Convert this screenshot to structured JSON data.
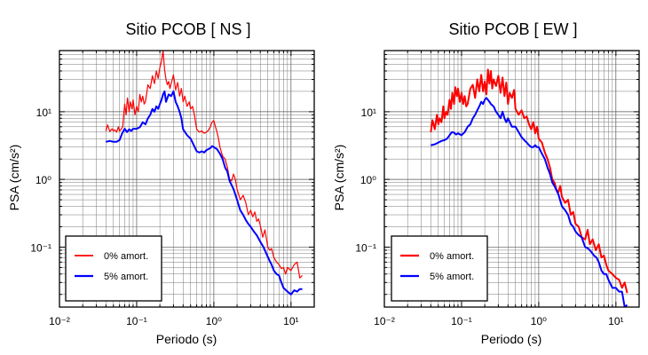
{
  "figure": {
    "background": "#ffffff"
  },
  "chart_data": [
    {
      "type": "line",
      "title": "Sitio PCOB [ NS ]",
      "xlabel": "Periodo (s)",
      "ylabel": "PSA (cm/s²)",
      "xscale": "log",
      "yscale": "log",
      "xlim": [
        0.01,
        20
      ],
      "ylim": [
        0.013,
        80
      ],
      "xticks": [
        0.01,
        0.1,
        1,
        10
      ],
      "xtick_labels": [
        "10⁻²",
        "10⁻¹",
        "10⁰",
        "10¹"
      ],
      "yticks": [
        0.1,
        1,
        10
      ],
      "ytick_labels": [
        "10⁻¹",
        "10⁰",
        "10¹"
      ],
      "grid": true,
      "legend": "lower-left",
      "series": [
        {
          "name": "0% amort.",
          "color": "#ff0000",
          "width": 1.2,
          "x": [
            0.04,
            0.042,
            0.045,
            0.048,
            0.05,
            0.052,
            0.055,
            0.058,
            0.06,
            0.063,
            0.066,
            0.07,
            0.073,
            0.076,
            0.08,
            0.083,
            0.087,
            0.09,
            0.095,
            0.1,
            0.105,
            0.11,
            0.115,
            0.12,
            0.125,
            0.13,
            0.14,
            0.15,
            0.16,
            0.17,
            0.18,
            0.19,
            0.2,
            0.21,
            0.22,
            0.23,
            0.24,
            0.25,
            0.26,
            0.27,
            0.28,
            0.3,
            0.32,
            0.34,
            0.36,
            0.38,
            0.4,
            0.42,
            0.45,
            0.48,
            0.5,
            0.53,
            0.56,
            0.6,
            0.65,
            0.7,
            0.75,
            0.8,
            0.85,
            0.9,
            0.95,
            1.0,
            1.05,
            1.1,
            1.15,
            1.2,
            1.3,
            1.4,
            1.5,
            1.6,
            1.7,
            1.8,
            1.9,
            2.0,
            2.2,
            2.4,
            2.6,
            2.8,
            3.0,
            3.2,
            3.4,
            3.6,
            3.8,
            4.0,
            4.3,
            4.6,
            5.0,
            5.3,
            5.6,
            6.0,
            6.5,
            7.0,
            7.5,
            8.0,
            8.5,
            9.0,
            10.0,
            11.0,
            12.0,
            13.0,
            14.0
          ],
          "y": [
            5.2,
            6.4,
            5.1,
            5.6,
            5.2,
            5.4,
            5.0,
            6.0,
            5.2,
            5.5,
            6.0,
            13.0,
            9.0,
            16.0,
            10.0,
            14.0,
            11.0,
            15.0,
            9.0,
            12.0,
            10.0,
            18.0,
            14.0,
            17.0,
            13.0,
            14.0,
            25.0,
            22.0,
            34.0,
            26.0,
            40.0,
            31.0,
            45.0,
            56.0,
            80.0,
            42.0,
            30.0,
            25.0,
            28.0,
            22.0,
            26.0,
            35.0,
            21.0,
            27.0,
            17.0,
            22.0,
            14.0,
            17.0,
            12.0,
            14.0,
            11.0,
            12.0,
            9.0,
            5.5,
            5.0,
            5.2,
            4.8,
            5.0,
            5.3,
            6.0,
            7.0,
            7.4,
            6.0,
            5.0,
            4.0,
            3.0,
            2.2,
            2.0,
            1.5,
            1.0,
            0.95,
            1.2,
            1.0,
            0.72,
            0.5,
            0.58,
            0.45,
            0.3,
            0.35,
            0.28,
            0.33,
            0.24,
            0.26,
            0.21,
            0.14,
            0.18,
            0.1,
            0.09,
            0.095,
            0.07,
            0.06,
            0.055,
            0.048,
            0.05,
            0.04,
            0.05,
            0.045,
            0.055,
            0.06,
            0.035,
            0.038
          ]
        },
        {
          "name": "5% amort.",
          "color": "#0000ff",
          "width": 2.0,
          "x": [
            0.04,
            0.045,
            0.05,
            0.055,
            0.06,
            0.065,
            0.07,
            0.075,
            0.08,
            0.085,
            0.09,
            0.1,
            0.11,
            0.12,
            0.13,
            0.14,
            0.15,
            0.16,
            0.17,
            0.18,
            0.19,
            0.2,
            0.21,
            0.22,
            0.23,
            0.24,
            0.26,
            0.28,
            0.3,
            0.32,
            0.34,
            0.36,
            0.38,
            0.4,
            0.45,
            0.5,
            0.55,
            0.6,
            0.65,
            0.7,
            0.75,
            0.8,
            0.85,
            0.9,
            0.95,
            1.0,
            1.1,
            1.2,
            1.3,
            1.4,
            1.5,
            1.6,
            1.8,
            2.0,
            2.2,
            2.4,
            2.6,
            2.8,
            3.0,
            3.3,
            3.6,
            4.0,
            4.4,
            4.8,
            5.2,
            5.6,
            6.0,
            6.5,
            7.0,
            7.5,
            8.0,
            9.0,
            10.0,
            11.0,
            12.0,
            13.0,
            14.0
          ],
          "y": [
            3.6,
            3.7,
            3.6,
            3.6,
            3.8,
            4.8,
            5.6,
            5.0,
            5.5,
            5.2,
            5.6,
            5.6,
            5.9,
            7.0,
            6.5,
            8.0,
            9.0,
            11.0,
            10.0,
            12.0,
            11.0,
            13.0,
            15.0,
            18.0,
            20.0,
            14.0,
            18.0,
            17.0,
            20.0,
            14.0,
            12.0,
            10.0,
            8.0,
            5.5,
            4.5,
            4.0,
            3.2,
            2.6,
            2.5,
            2.6,
            2.5,
            2.7,
            2.8,
            2.9,
            3.1,
            3.0,
            2.8,
            2.4,
            2.0,
            1.5,
            1.3,
            0.95,
            0.72,
            0.5,
            0.35,
            0.3,
            0.25,
            0.22,
            0.2,
            0.17,
            0.15,
            0.12,
            0.1,
            0.08,
            0.065,
            0.055,
            0.045,
            0.04,
            0.038,
            0.03,
            0.025,
            0.022,
            0.02,
            0.023,
            0.022,
            0.024,
            0.024
          ]
        }
      ]
    },
    {
      "type": "line",
      "title": "Sitio PCOB [ EW ]",
      "xlabel": "Periodo (s)",
      "ylabel": "PSA (cm/s²)",
      "xscale": "log",
      "yscale": "log",
      "xlim": [
        0.01,
        20
      ],
      "ylim": [
        0.013,
        80
      ],
      "xticks": [
        0.01,
        0.1,
        1,
        10
      ],
      "xtick_labels": [
        "10⁻²",
        "10⁻¹",
        "10⁰",
        "10¹"
      ],
      "yticks": [
        0.1,
        1,
        10
      ],
      "ytick_labels": [
        "10⁻¹",
        "10⁰",
        "10¹"
      ],
      "grid": true,
      "legend": "lower-left",
      "series": [
        {
          "name": "0% amort.",
          "color": "#ff0000",
          "width": 2.0,
          "x": [
            0.04,
            0.042,
            0.045,
            0.048,
            0.05,
            0.052,
            0.055,
            0.058,
            0.06,
            0.063,
            0.066,
            0.07,
            0.073,
            0.076,
            0.08,
            0.083,
            0.087,
            0.09,
            0.095,
            0.1,
            0.105,
            0.11,
            0.115,
            0.12,
            0.13,
            0.14,
            0.15,
            0.16,
            0.17,
            0.18,
            0.19,
            0.2,
            0.21,
            0.22,
            0.23,
            0.24,
            0.25,
            0.26,
            0.28,
            0.3,
            0.32,
            0.34,
            0.36,
            0.38,
            0.4,
            0.42,
            0.45,
            0.48,
            0.5,
            0.55,
            0.6,
            0.65,
            0.7,
            0.75,
            0.8,
            0.85,
            0.9,
            0.95,
            1.0,
            1.1,
            1.2,
            1.3,
            1.4,
            1.5,
            1.6,
            1.7,
            1.8,
            1.9,
            2.0,
            2.2,
            2.4,
            2.6,
            2.8,
            3.0,
            3.3,
            3.6,
            4.0,
            4.3,
            4.6,
            5.0,
            5.5,
            6.0,
            6.5,
            7.0,
            7.5,
            8.0,
            9.0,
            10.0,
            11.0,
            12.0,
            13.0,
            14.0
          ],
          "y": [
            5.0,
            7.5,
            5.5,
            9.0,
            6.5,
            8.0,
            7.0,
            12.0,
            8.0,
            10.0,
            9.0,
            15.0,
            11.0,
            19.0,
            13.0,
            23.0,
            17.0,
            22.0,
            14.0,
            19.0,
            13.0,
            17.0,
            12.0,
            13.0,
            22.0,
            25.0,
            16.0,
            30.0,
            20.0,
            35.0,
            20.0,
            28.0,
            18.0,
            42.0,
            26.0,
            40.0,
            22.0,
            30.0,
            24.0,
            34.0,
            19.0,
            32.0,
            17.0,
            27.0,
            13.0,
            19.0,
            16.0,
            21.0,
            11.0,
            9.0,
            10.5,
            8.0,
            8.5,
            6.5,
            5.5,
            7.0,
            4.8,
            6.0,
            4.0,
            3.5,
            2.5,
            2.0,
            1.5,
            1.0,
            0.9,
            0.7,
            0.65,
            0.8,
            0.55,
            0.45,
            0.5,
            0.3,
            0.33,
            0.22,
            0.2,
            0.14,
            0.13,
            0.18,
            0.11,
            0.13,
            0.09,
            0.11,
            0.07,
            0.075,
            0.055,
            0.045,
            0.04,
            0.035,
            0.033,
            0.025,
            0.03,
            0.021
          ]
        },
        {
          "name": "5% amort.",
          "color": "#0000ff",
          "width": 2.0,
          "x": [
            0.04,
            0.045,
            0.05,
            0.055,
            0.06,
            0.065,
            0.07,
            0.075,
            0.08,
            0.085,
            0.09,
            0.1,
            0.11,
            0.12,
            0.13,
            0.14,
            0.15,
            0.16,
            0.17,
            0.18,
            0.19,
            0.2,
            0.21,
            0.22,
            0.23,
            0.24,
            0.26,
            0.28,
            0.3,
            0.32,
            0.34,
            0.36,
            0.38,
            0.4,
            0.45,
            0.5,
            0.55,
            0.6,
            0.65,
            0.7,
            0.75,
            0.8,
            0.85,
            0.9,
            0.95,
            1.0,
            1.1,
            1.2,
            1.3,
            1.4,
            1.5,
            1.6,
            1.8,
            2.0,
            2.2,
            2.4,
            2.6,
            2.8,
            3.0,
            3.3,
            3.6,
            4.0,
            4.4,
            4.8,
            5.2,
            5.6,
            6.0,
            6.5,
            7.0,
            7.5,
            8.0,
            9.0,
            10.0,
            11.0,
            12.0,
            13.0,
            14.0
          ],
          "y": [
            3.2,
            3.3,
            3.5,
            3.7,
            3.8,
            4.0,
            4.5,
            5.0,
            4.9,
            4.6,
            4.8,
            4.5,
            5.0,
            6.0,
            6.5,
            8.0,
            9.0,
            10.5,
            12.0,
            14.0,
            13.0,
            15.0,
            16.0,
            15.0,
            14.0,
            13.0,
            12.0,
            10.0,
            9.0,
            8.0,
            10.0,
            8.0,
            7.0,
            8.0,
            6.0,
            6.0,
            5.0,
            4.2,
            3.8,
            3.5,
            3.2,
            3.0,
            3.0,
            3.2,
            3.0,
            3.0,
            2.4,
            2.0,
            1.5,
            1.2,
            0.9,
            0.8,
            0.6,
            0.4,
            0.35,
            0.3,
            0.22,
            0.2,
            0.17,
            0.15,
            0.14,
            0.1,
            0.095,
            0.085,
            0.075,
            0.07,
            0.06,
            0.045,
            0.04,
            0.04,
            0.033,
            0.025,
            0.025,
            0.022,
            0.022,
            0.013,
            0.014
          ]
        }
      ]
    }
  ]
}
